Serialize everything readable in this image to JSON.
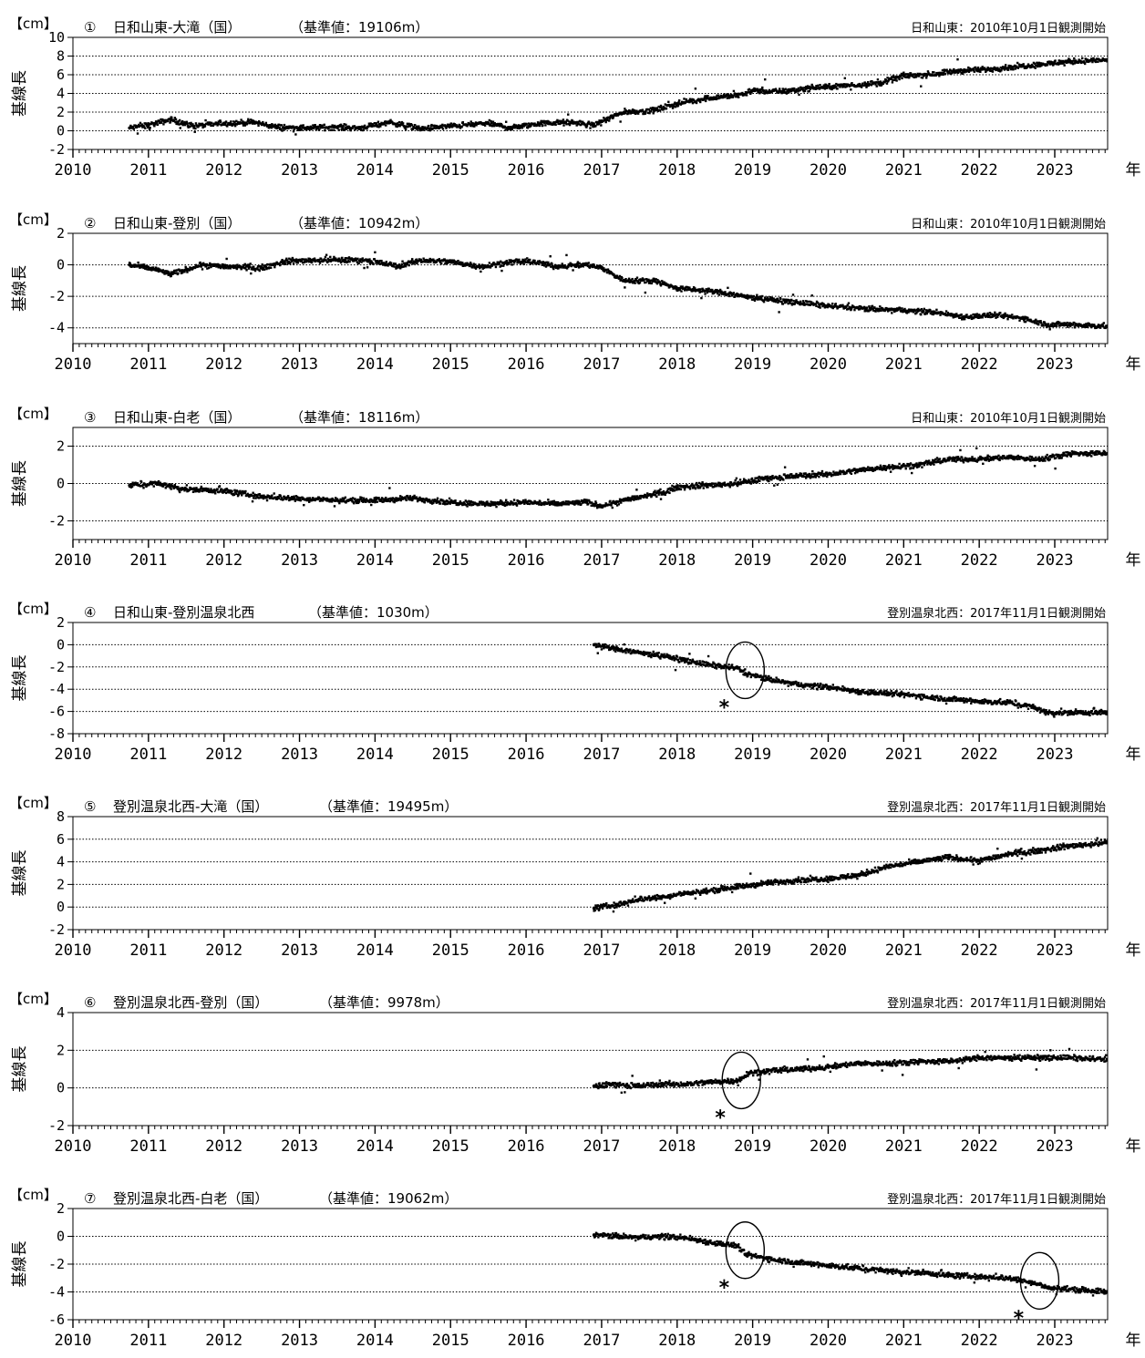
{
  "chart_data": [
    {
      "type": "scatter",
      "number": "①",
      "title": "日和山東-大滝（国）",
      "reference": "（基準値：19106m）",
      "obs_note": "日和山東：2010年10月1日観測開始",
      "unit": "【cm】",
      "ylabel": "基線長",
      "xlabel": "年",
      "xlim": [
        2010,
        2023.7
      ],
      "ylim": [
        -2,
        10
      ],
      "yticks": [
        -2,
        0,
        2,
        4,
        6,
        8,
        10
      ],
      "xticks": [
        "2010",
        "2011",
        "2012",
        "2013",
        "2014",
        "2015",
        "2016",
        "2017",
        "2018",
        "2019",
        "2020",
        "2021",
        "2022",
        "2023"
      ],
      "grid": true,
      "series": [
        {
          "x": [
            2010.75,
            2011.0,
            2011.3,
            2011.6,
            2012.0,
            2012.4,
            2012.7,
            2013.0,
            2013.5,
            2013.8,
            2014.2,
            2014.6,
            2015.0,
            2015.5,
            2015.8,
            2016.2,
            2016.6,
            2016.9,
            2017.0,
            2017.3,
            2017.7,
            2018.0,
            2018.4,
            2018.8,
            2019.0,
            2019.4,
            2019.8,
            2020.2,
            2020.5,
            2020.7,
            2021.0,
            2021.3,
            2021.7,
            2022.0,
            2022.4,
            2022.8,
            2023.2,
            2023.7
          ],
          "y": [
            0.3,
            0.6,
            1.2,
            0.5,
            0.8,
            0.9,
            0.4,
            0.3,
            0.4,
            0.3,
            0.9,
            0.2,
            0.5,
            0.8,
            0.3,
            0.8,
            0.9,
            0.6,
            1.0,
            2.0,
            2.2,
            2.9,
            3.5,
            3.8,
            4.3,
            4.2,
            4.6,
            4.8,
            5.0,
            5.1,
            5.9,
            6.0,
            6.4,
            6.5,
            6.8,
            7.1,
            7.4,
            7.6
          ]
        }
      ]
    },
    {
      "type": "scatter",
      "number": "②",
      "title": "日和山東-登別（国）",
      "reference": "（基準値：10942m）",
      "obs_note": "日和山東：2010年10月1日観測開始",
      "unit": "【cm】",
      "ylabel": "基線長",
      "xlabel": "年",
      "xlim": [
        2010,
        2023.7
      ],
      "ylim": [
        -5,
        2
      ],
      "yticks": [
        -4,
        -2,
        0,
        2
      ],
      "xticks": [
        "2010",
        "2011",
        "2012",
        "2013",
        "2014",
        "2015",
        "2016",
        "2017",
        "2018",
        "2019",
        "2020",
        "2021",
        "2022",
        "2023"
      ],
      "grid": true,
      "series": [
        {
          "x": [
            2010.75,
            2011.1,
            2011.3,
            2011.7,
            2012.0,
            2012.5,
            2012.8,
            2013.2,
            2013.6,
            2013.9,
            2014.3,
            2014.6,
            2015.0,
            2015.4,
            2015.8,
            2016.1,
            2016.4,
            2016.8,
            2017.0,
            2017.3,
            2017.7,
            2018.0,
            2018.5,
            2018.9,
            2019.2,
            2019.6,
            2020.0,
            2020.5,
            2021.0,
            2021.4,
            2021.8,
            2022.2,
            2022.6,
            2022.9,
            2023.2,
            2023.7
          ],
          "y": [
            0.0,
            -0.3,
            -0.6,
            0.0,
            -0.1,
            -0.2,
            0.2,
            0.3,
            0.3,
            0.3,
            -0.1,
            0.3,
            0.2,
            -0.1,
            0.2,
            0.2,
            -0.1,
            0.0,
            -0.2,
            -1.0,
            -1.0,
            -1.5,
            -1.7,
            -2.0,
            -2.2,
            -2.4,
            -2.6,
            -2.8,
            -2.9,
            -3.0,
            -3.3,
            -3.2,
            -3.4,
            -3.8,
            -3.8,
            -3.9
          ]
        }
      ]
    },
    {
      "type": "scatter",
      "number": "③",
      "title": "日和山東-白老（国）",
      "reference": "（基準値：18116m）",
      "obs_note": "日和山東：2010年10月1日観測開始",
      "unit": "【cm】",
      "ylabel": "基線長",
      "xlabel": "年",
      "xlim": [
        2010,
        2023.7
      ],
      "ylim": [
        -3,
        3
      ],
      "yticks": [
        -2,
        0,
        2
      ],
      "xticks": [
        "2010",
        "2011",
        "2012",
        "2013",
        "2014",
        "2015",
        "2016",
        "2017",
        "2018",
        "2019",
        "2020",
        "2021",
        "2022",
        "2023"
      ],
      "grid": true,
      "series": [
        {
          "x": [
            2010.75,
            2011.1,
            2011.5,
            2012.0,
            2012.5,
            2013.0,
            2013.5,
            2014.0,
            2014.5,
            2015.0,
            2015.5,
            2016.0,
            2016.4,
            2016.8,
            2017.0,
            2017.4,
            2017.8,
            2018.0,
            2018.4,
            2018.8,
            2019.2,
            2019.6,
            2020.0,
            2020.4,
            2020.8,
            2021.2,
            2021.6,
            2022.0,
            2022.4,
            2022.8,
            2023.2,
            2023.7
          ],
          "y": [
            -0.1,
            0.0,
            -0.3,
            -0.4,
            -0.7,
            -0.8,
            -0.9,
            -0.9,
            -0.8,
            -1.0,
            -1.1,
            -1.0,
            -1.1,
            -1.0,
            -1.2,
            -0.8,
            -0.5,
            -0.2,
            -0.1,
            0.0,
            0.3,
            0.4,
            0.5,
            0.7,
            0.9,
            1.0,
            1.3,
            1.3,
            1.4,
            1.3,
            1.6,
            1.6
          ]
        }
      ]
    },
    {
      "type": "scatter",
      "number": "④",
      "title": "日和山東-登別温泉北西",
      "reference": "（基準値：1030m）",
      "obs_note": "登別温泉北西：2017年11月1日観測開始",
      "unit": "【cm】",
      "ylabel": "基線長",
      "xlabel": "年",
      "xlim": [
        2010,
        2023.7
      ],
      "ylim": [
        -8,
        2
      ],
      "yticks": [
        -8,
        -6,
        -4,
        -2,
        0,
        2
      ],
      "xticks": [
        "2010",
        "2011",
        "2012",
        "2013",
        "2014",
        "2015",
        "2016",
        "2017",
        "2018",
        "2019",
        "2020",
        "2021",
        "2022",
        "2023"
      ],
      "grid": true,
      "annotations": [
        {
          "type": "ellipse",
          "x": 2018.9,
          "y": -2.3,
          "marker": "*"
        }
      ],
      "series": [
        {
          "x": [
            2016.9,
            2017.2,
            2017.5,
            2017.8,
            2018.1,
            2018.4,
            2018.8,
            2018.9,
            2019.2,
            2019.6,
            2020.0,
            2020.4,
            2020.8,
            2021.2,
            2021.6,
            2022.0,
            2022.4,
            2022.7,
            2022.9,
            2023.2,
            2023.7
          ],
          "y": [
            0.0,
            -0.4,
            -0.7,
            -1.0,
            -1.4,
            -1.8,
            -2.1,
            -2.6,
            -3.1,
            -3.6,
            -3.8,
            -4.2,
            -4.4,
            -4.6,
            -4.9,
            -5.1,
            -5.2,
            -5.6,
            -6.1,
            -6.1,
            -6.1
          ]
        }
      ]
    },
    {
      "type": "scatter",
      "number": "⑤",
      "title": "登別温泉北西-大滝（国）",
      "reference": "（基準値：19495m）",
      "obs_note": "登別温泉北西：2017年11月1日観測開始",
      "unit": "【cm】",
      "ylabel": "基線長",
      "xlabel": "年",
      "xlim": [
        2010,
        2023.7
      ],
      "ylim": [
        -2,
        8
      ],
      "yticks": [
        -2,
        0,
        2,
        4,
        6,
        8
      ],
      "xticks": [
        "2010",
        "2011",
        "2012",
        "2013",
        "2014",
        "2015",
        "2016",
        "2017",
        "2018",
        "2019",
        "2020",
        "2021",
        "2022",
        "2023"
      ],
      "grid": true,
      "series": [
        {
          "x": [
            2016.9,
            2017.2,
            2017.5,
            2017.8,
            2018.1,
            2018.4,
            2018.8,
            2019.2,
            2019.6,
            2020.0,
            2020.4,
            2020.8,
            2021.2,
            2021.6,
            2022.0,
            2022.4,
            2022.8,
            2023.2,
            2023.7
          ],
          "y": [
            -0.1,
            0.2,
            0.7,
            0.9,
            1.2,
            1.4,
            1.8,
            2.1,
            2.4,
            2.5,
            2.8,
            3.6,
            4.0,
            4.4,
            4.1,
            4.7,
            5.0,
            5.4,
            5.7
          ]
        }
      ]
    },
    {
      "type": "scatter",
      "number": "⑥",
      "title": "登別温泉北西-登別（国）",
      "reference": "（基準値：9978m）",
      "obs_note": "登別温泉北西：2017年11月1日観測開始",
      "unit": "【cm】",
      "ylabel": "基線長",
      "xlabel": "年",
      "xlim": [
        2010,
        2023.7
      ],
      "ylim": [
        -2,
        4
      ],
      "yticks": [
        -2,
        0,
        2,
        4
      ],
      "xticks": [
        "2010",
        "2011",
        "2012",
        "2013",
        "2014",
        "2015",
        "2016",
        "2017",
        "2018",
        "2019",
        "2020",
        "2021",
        "2022",
        "2023"
      ],
      "grid": true,
      "annotations": [
        {
          "type": "ellipse",
          "x": 2018.85,
          "y": 0.4,
          "marker": "*"
        }
      ],
      "series": [
        {
          "x": [
            2016.9,
            2017.2,
            2017.5,
            2017.8,
            2018.1,
            2018.4,
            2018.8,
            2018.95,
            2019.2,
            2019.6,
            2020.0,
            2020.4,
            2020.8,
            2021.2,
            2021.6,
            2022.0,
            2022.4,
            2022.8,
            2023.2,
            2023.7
          ],
          "y": [
            0.1,
            0.2,
            0.1,
            0.2,
            0.2,
            0.3,
            0.4,
            0.8,
            0.9,
            1.0,
            1.1,
            1.3,
            1.3,
            1.4,
            1.4,
            1.6,
            1.6,
            1.6,
            1.6,
            1.5
          ]
        }
      ]
    },
    {
      "type": "scatter",
      "number": "⑦",
      "title": "登別温泉北西-白老（国）",
      "reference": "（基準値：19062m）",
      "obs_note": "登別温泉北西：2017年11月1日観測開始",
      "unit": "【cm】",
      "ylabel": "基線長",
      "xlabel": "年",
      "xlim": [
        2010,
        2023.7
      ],
      "ylim": [
        -6,
        2
      ],
      "yticks": [
        -6,
        -4,
        -2,
        0,
        2
      ],
      "xticks": [
        "2010",
        "2011",
        "2012",
        "2013",
        "2014",
        "2015",
        "2016",
        "2017",
        "2018",
        "2019",
        "2020",
        "2021",
        "2022",
        "2023"
      ],
      "grid": true,
      "annotations": [
        {
          "type": "ellipse",
          "x": 2018.9,
          "y": -1.0,
          "marker": "*"
        },
        {
          "type": "ellipse",
          "x": 2022.8,
          "y": -3.2,
          "marker": "*"
        }
      ],
      "series": [
        {
          "x": [
            2016.9,
            2017.2,
            2017.5,
            2017.8,
            2018.1,
            2018.4,
            2018.8,
            2018.9,
            2019.2,
            2019.6,
            2020.0,
            2020.4,
            2020.8,
            2021.2,
            2021.6,
            2022.0,
            2022.4,
            2022.7,
            2022.9,
            2023.2,
            2023.7
          ],
          "y": [
            0.1,
            0.0,
            -0.1,
            0.0,
            -0.1,
            -0.4,
            -0.7,
            -1.3,
            -1.6,
            -1.9,
            -2.1,
            -2.3,
            -2.5,
            -2.6,
            -2.8,
            -2.9,
            -3.0,
            -3.3,
            -3.7,
            -3.8,
            -4.0
          ]
        }
      ]
    }
  ]
}
